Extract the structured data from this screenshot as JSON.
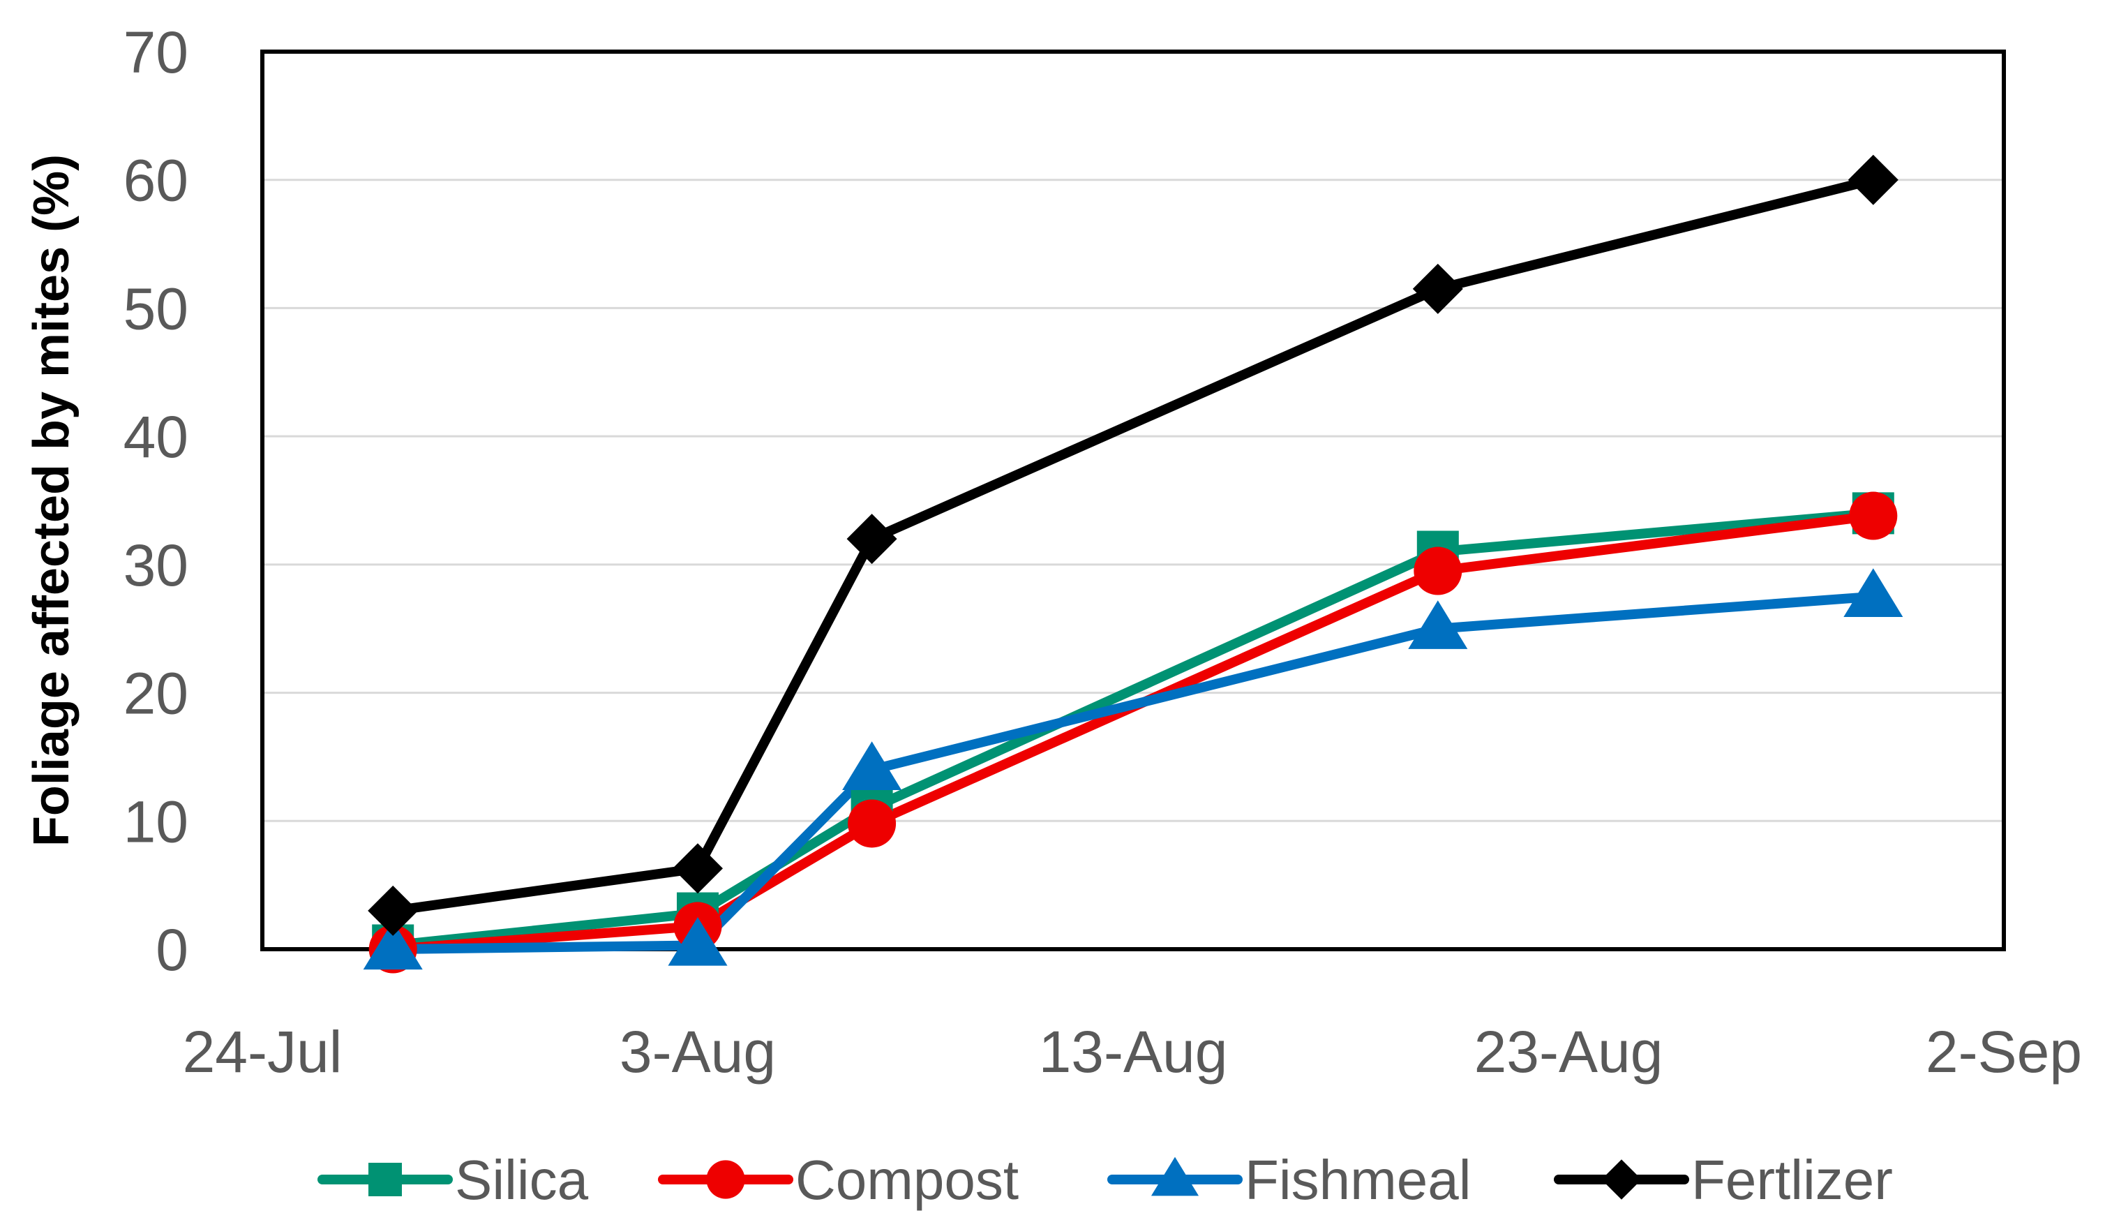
{
  "chart_data": {
    "type": "line",
    "title": "",
    "xlabel": "",
    "ylabel": "Foliage affected by mites (%)",
    "x_dates": [
      "27-Jul",
      "3-Aug",
      "7-Aug",
      "20-Aug",
      "30-Aug"
    ],
    "x_day_offsets": [
      3,
      10,
      14,
      27,
      37
    ],
    "xlim_days": [
      0,
      40
    ],
    "x_ticks": [
      {
        "day": 0,
        "label": "24-Jul"
      },
      {
        "day": 10,
        "label": "3-Aug"
      },
      {
        "day": 20,
        "label": "13-Aug"
      },
      {
        "day": 30,
        "label": "23-Aug"
      },
      {
        "day": 40,
        "label": "2-Sep"
      }
    ],
    "ylim": [
      0,
      70
    ],
    "y_ticks": [
      {
        "value": 0,
        "label": "0"
      },
      {
        "value": 10,
        "label": "10"
      },
      {
        "value": 20,
        "label": "20"
      },
      {
        "value": 30,
        "label": "30"
      },
      {
        "value": 40,
        "label": "40"
      },
      {
        "value": 50,
        "label": "50"
      },
      {
        "value": 60,
        "label": "60"
      },
      {
        "value": 70,
        "label": "70"
      }
    ],
    "grid": true,
    "legend_position": "bottom",
    "series": [
      {
        "name": "Silica",
        "color": "#009273",
        "marker": "square",
        "values": [
          0.3,
          2.8,
          11,
          31,
          34
        ]
      },
      {
        "name": "Compost",
        "color": "#ee0000",
        "marker": "circle",
        "values": [
          0,
          1.8,
          9.8,
          29.5,
          33.8
        ]
      },
      {
        "name": "Fishmeal",
        "color": "#0070c0",
        "marker": "triangle",
        "values": [
          0,
          0.3,
          14,
          25,
          27.5
        ]
      },
      {
        "name": "Fertlizer",
        "color": "#000000",
        "marker": "diamond",
        "values": [
          3,
          6.3,
          32,
          51.5,
          60
        ]
      }
    ]
  }
}
